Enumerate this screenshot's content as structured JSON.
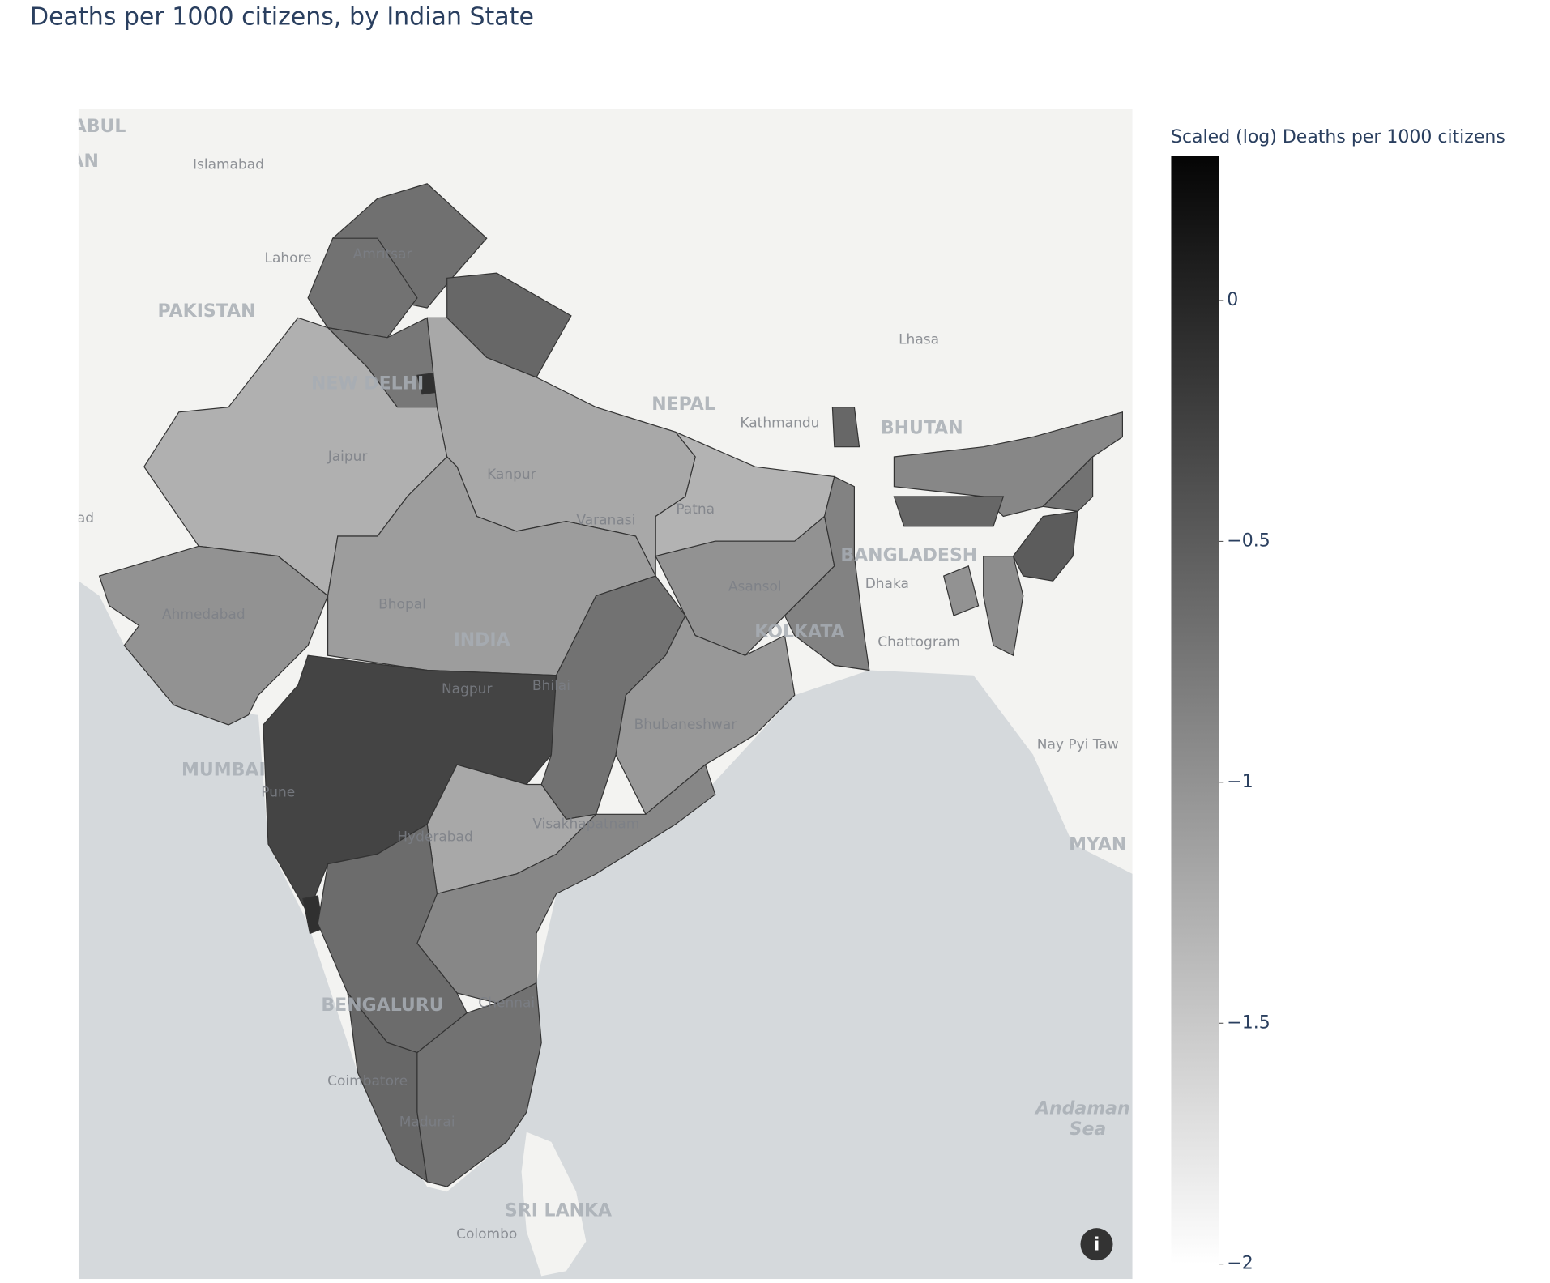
{
  "chart_data": {
    "type": "choropleth",
    "title": "Deaths per 1000 citizens, by Indian State",
    "colorbar_title": "Scaled (log) Deaths per 1000 citizens",
    "values": [
      -0.68,
      -0.7,
      -0.6,
      -0.75,
      -0.1,
      -1.27,
      -1.2,
      -1.0,
      -1.1,
      -0.28,
      -0.1,
      -0.7,
      -1.3,
      -1.0,
      -0.85,
      -1.05,
      -1.2,
      -0.9,
      -0.65,
      -0.6,
      -0.7,
      -0.9,
      -0.6,
      -0.6,
      -0.5,
      -1.0,
      -0.95,
      -0.7
    ],
    "clim": [
      -2,
      0.3
    ],
    "cticks": [
      0,
      {
        "value": -0.5,
        "label": "−0.5"
      },
      {
        "value": -1,
        "label": "−1"
      },
      {
        "value": -1.5,
        "label": "−1.5"
      },
      {
        "value": -2,
        "label": "−2"
      }
    ],
    "colors": [
      "#ffffff",
      "#050505"
    ],
    "map_labels": [
      "ABUL",
      "AN",
      "Islamabad",
      "Lahore",
      "Amritsar",
      "PAKISTAN",
      "NEW DELHI",
      "Jaipur",
      "Kanpur",
      "Varanasi",
      "Patna",
      "NEPAL",
      "Kathmandu",
      "BHUTAN",
      "Lhasa",
      "BANGLADESH",
      "Dhaka",
      "Chattogram",
      "ad",
      "Ahmedabad",
      "Bhopal",
      "INDIA",
      "Asansol",
      "KOLKATA",
      "Nagpur",
      "Bhilai",
      "Bhubaneshwar",
      "MUMBAI",
      "Pune",
      "Hyderabad",
      "Visakhapatnam",
      "Nay Pyi Taw",
      "MYAN",
      "BENGALURU",
      "Chennai",
      "Coimbatore",
      "Madurai",
      "Andaman",
      "Sea",
      "SRI LANKA",
      "Colombo"
    ]
  }
}
